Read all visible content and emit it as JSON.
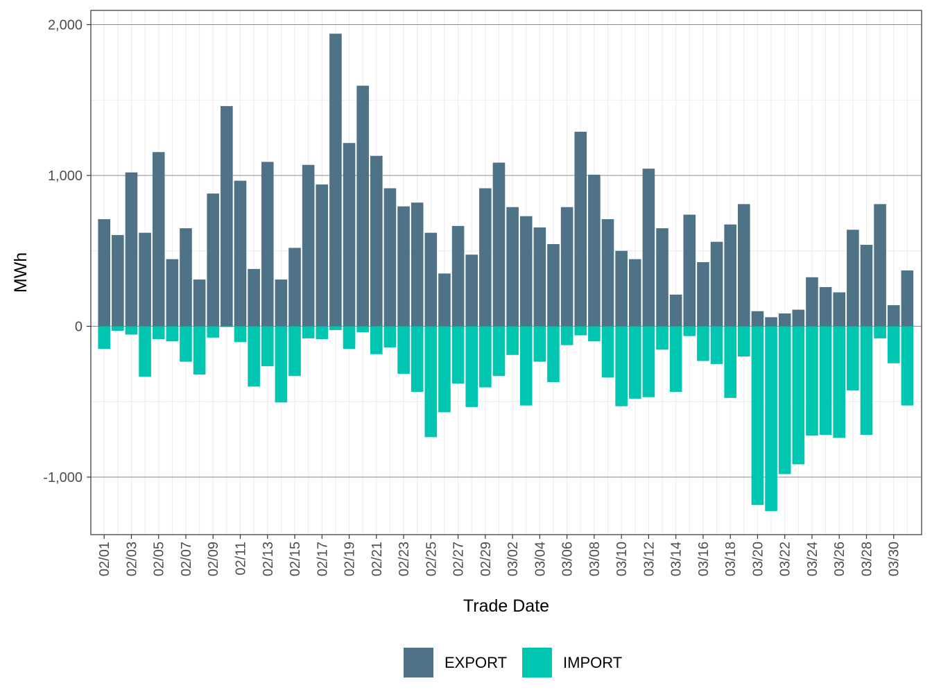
{
  "chart_data": {
    "type": "bar",
    "title": "",
    "xlabel": "Trade Date",
    "ylabel": "MWh",
    "ylim": [
      -1380,
      2090
    ],
    "yticks": [
      -1000,
      0,
      1000,
      2000
    ],
    "ytick_labels": [
      "-1,000",
      "0",
      "1,000",
      "2,000"
    ],
    "grid": true,
    "legend_position": "bottom",
    "categories": [
      "02/01",
      "02/02",
      "02/03",
      "02/04",
      "02/05",
      "02/06",
      "02/07",
      "02/08",
      "02/09",
      "02/10",
      "02/11",
      "02/12",
      "02/13",
      "02/14",
      "02/15",
      "02/16",
      "02/17",
      "02/18",
      "02/19",
      "02/20",
      "02/21",
      "02/22",
      "02/23",
      "02/24",
      "02/25",
      "02/26",
      "02/27",
      "02/28",
      "02/29",
      "03/01",
      "03/02",
      "03/03",
      "03/04",
      "03/05",
      "03/06",
      "03/07",
      "03/08",
      "03/09",
      "03/10",
      "03/11",
      "03/12",
      "03/13",
      "03/14",
      "03/15",
      "03/16",
      "03/17",
      "03/18",
      "03/19",
      "03/20",
      "03/21",
      "03/22",
      "03/23",
      "03/24",
      "03/25",
      "03/26",
      "03/27",
      "03/28",
      "03/29",
      "03/30",
      "03/31"
    ],
    "xtick_labels": [
      "02/01",
      "02/03",
      "02/05",
      "02/07",
      "02/09",
      "02/11",
      "02/13",
      "02/15",
      "02/17",
      "02/19",
      "02/21",
      "02/23",
      "02/25",
      "02/27",
      "02/29",
      "03/02",
      "03/04",
      "03/06",
      "03/08",
      "03/10",
      "03/12",
      "03/14",
      "03/16",
      "03/18",
      "03/20",
      "03/22",
      "03/24",
      "03/26",
      "03/28",
      "03/30"
    ],
    "series": [
      {
        "name": "EXPORT",
        "color": "#4e7387",
        "values": [
          710,
          605,
          1020,
          620,
          1155,
          445,
          650,
          310,
          880,
          1460,
          965,
          380,
          1090,
          310,
          520,
          1070,
          940,
          1940,
          1215,
          1595,
          1130,
          915,
          795,
          820,
          620,
          350,
          665,
          475,
          915,
          1085,
          790,
          730,
          655,
          545,
          790,
          1290,
          1005,
          710,
          500,
          445,
          1045,
          650,
          210,
          740,
          425,
          560,
          675,
          810,
          100,
          60,
          85,
          110,
          325,
          260,
          225,
          640,
          540,
          810,
          140,
          370
        ]
      },
      {
        "name": "IMPORT",
        "color": "#00c5b0",
        "values": [
          -150,
          -30,
          -55,
          -335,
          -85,
          -100,
          -235,
          -320,
          -75,
          -5,
          -105,
          -400,
          -265,
          -505,
          -330,
          -80,
          -85,
          -25,
          -150,
          -40,
          -185,
          -140,
          -315,
          -435,
          -735,
          -570,
          -380,
          -535,
          -405,
          -330,
          -190,
          -525,
          -235,
          -370,
          -125,
          -60,
          -100,
          -340,
          -530,
          -480,
          -470,
          -155,
          -435,
          -65,
          -230,
          -250,
          -475,
          -200,
          -1185,
          -1225,
          -980,
          -915,
          -725,
          -720,
          -740,
          -425,
          -720,
          -80,
          -245,
          -525
        ]
      }
    ]
  },
  "legend": {
    "items": [
      {
        "label": "EXPORT",
        "color": "#4e7387"
      },
      {
        "label": "IMPORT",
        "color": "#00c5b0"
      }
    ]
  }
}
